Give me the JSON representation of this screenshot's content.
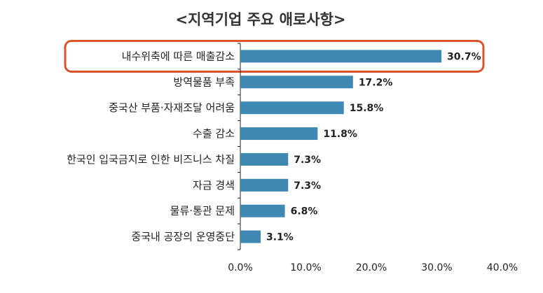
{
  "chart_data": {
    "type": "bar",
    "orientation": "horizontal",
    "title": "<지역기업 주요 애로사항>",
    "categories": [
      "내수위축에 따른 매출감소",
      "방역물품 부족",
      "중국산 부품·자재조달 어려움",
      "수출 감소",
      "한국인 입국금지로 인한 비즈니스 차질",
      "자금 경색",
      "물류·통관 문제",
      "중국내 공장의 운영중단"
    ],
    "values": [
      30.7,
      17.2,
      15.8,
      11.8,
      7.3,
      7.3,
      6.8,
      3.1
    ],
    "value_labels": [
      "30.7%",
      "17.2%",
      "15.8%",
      "11.8%",
      "7.3%",
      "7.3%",
      "6.8%",
      "3.1%"
    ],
    "xlim": [
      0,
      40
    ],
    "xticks": [
      0,
      10,
      20,
      30,
      40
    ],
    "xtick_labels": [
      "0.0%",
      "10.0%",
      "20.0%",
      "30.0%",
      "40.0%"
    ],
    "highlighted_index": 0,
    "bar_color": "#3f88b4",
    "highlight_color": "#d9532b",
    "xlabel": "",
    "ylabel": ""
  }
}
